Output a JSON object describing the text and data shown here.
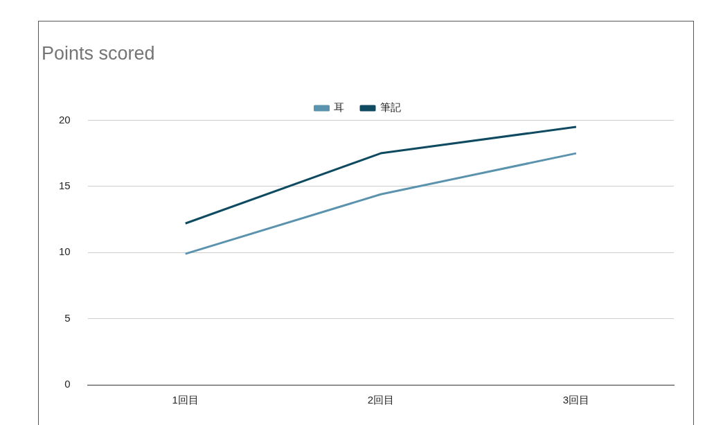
{
  "chart_data": {
    "type": "line",
    "title": "Points scored",
    "categories": [
      "1回目",
      "2回目",
      "3回目"
    ],
    "series": [
      {
        "name": "耳",
        "color": "#5b93ae",
        "values": [
          9.9,
          14.4,
          17.5
        ]
      },
      {
        "name": "筆記",
        "color": "#0e4a60",
        "values": [
          12.2,
          17.5,
          19.5
        ]
      }
    ],
    "ylim": [
      0,
      20
    ],
    "yticks": [
      0,
      5,
      10,
      15,
      20
    ],
    "grid": "y",
    "legend": "top",
    "marker": "none",
    "line_style": "solid"
  }
}
